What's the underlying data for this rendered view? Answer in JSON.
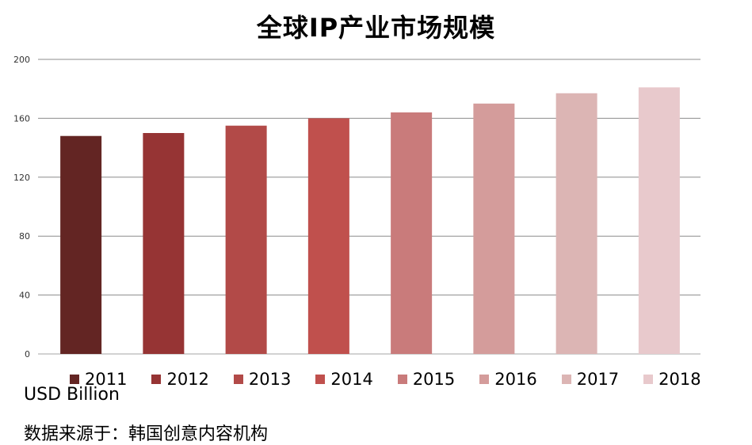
{
  "chart_data": {
    "type": "bar",
    "title": "全球IP产业市场规模",
    "categories": [
      "2011",
      "2012",
      "2013",
      "2014",
      "2015",
      "2016",
      "2017",
      "2018"
    ],
    "values": [
      148,
      150,
      155,
      160,
      164,
      170,
      177,
      181
    ],
    "colors": [
      "#632523",
      "#963434",
      "#b24a48",
      "#c0504d",
      "#c97b7b",
      "#d49c9b",
      "#dcb5b4",
      "#e8c9cc"
    ],
    "ylim": [
      0,
      200
    ],
    "yticks": [
      "0",
      "40",
      "80",
      "120",
      "160",
      "200"
    ],
    "ytick_values": [
      0,
      40,
      80,
      120,
      160,
      200
    ],
    "grid": true,
    "legend_placement": "bottom",
    "unit_label": "USD Billion",
    "source_note": "数据来源于：韩国创意内容机构"
  }
}
